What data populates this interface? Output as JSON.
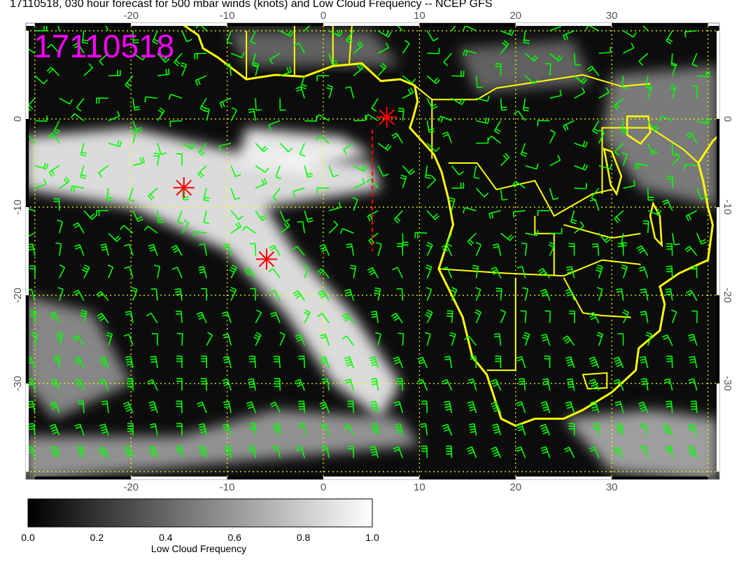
{
  "title": "17110518, 030 hour forecast for 500 mbar winds (knots) and Low Cloud Frequency -- NCEP GFS",
  "stamp": "17110518",
  "map": {
    "lon_range": [
      -31,
      41
    ],
    "lat_range": [
      -41,
      11
    ],
    "lon_ticks": [
      "-20",
      "-10",
      "0",
      "10",
      "20",
      "30"
    ],
    "lat_ticks": [
      "0",
      "-10",
      "-20",
      "-30"
    ],
    "grid_color": "#ffff00",
    "coastline_color": "#ffff00",
    "wind_barb_color": "#00ff00",
    "marker_color": "#ff0000",
    "stamp_color": "#ff00ff",
    "markers": [
      {
        "type": "asterisk",
        "lon": -14.5,
        "lat": -7.8
      },
      {
        "type": "asterisk",
        "lon": -5.9,
        "lat": -15.9
      },
      {
        "type": "asterisk",
        "lon": 6.6,
        "lat": 0.2
      }
    ],
    "dashed_track": {
      "lon": 5.1,
      "lat_from": -1.2,
      "lat_to": -15
    }
  },
  "colorbar": {
    "label": "Low Cloud Frequency",
    "ticks": [
      "0.0",
      "0.2",
      "0.4",
      "0.6",
      "0.8",
      "1.0"
    ],
    "range": [
      0,
      1
    ],
    "colors": [
      "#000000",
      "#ffffff"
    ]
  }
}
